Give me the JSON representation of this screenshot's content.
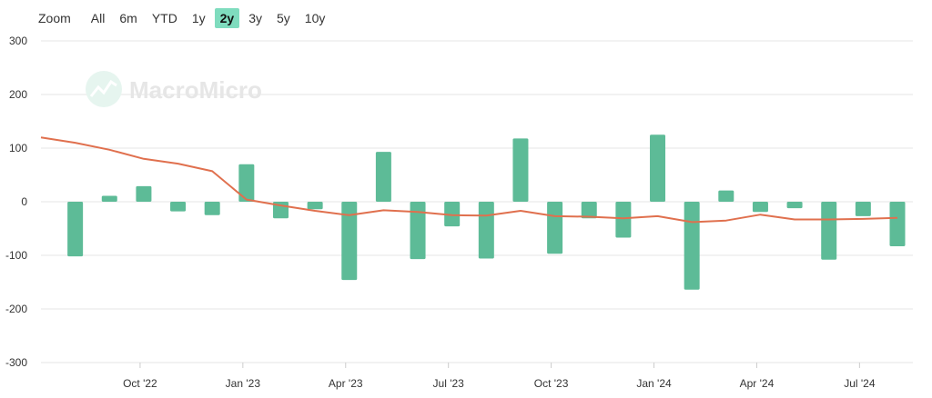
{
  "toolbar": {
    "zoom_label": "Zoom",
    "ranges": [
      "All",
      "6m",
      "YTD",
      "1y",
      "2y",
      "3y",
      "5y",
      "10y"
    ],
    "active_range": "2y"
  },
  "watermark": {
    "text": "MacroMicro"
  },
  "colors": {
    "bar": "#5dbb97",
    "line": "#e0704e",
    "grid": "#e6e6e6",
    "active": "#7fdcbe"
  },
  "chart_data": {
    "type": "bar",
    "title": "",
    "xlabel": "",
    "ylabel": "",
    "ylim": [
      -300,
      300
    ],
    "yticks": [
      300,
      200,
      100,
      0,
      -100,
      -200,
      -300
    ],
    "grid": true,
    "x": [
      "2022-08",
      "2022-09",
      "2022-10",
      "2022-11",
      "2022-12",
      "2023-01",
      "2023-02",
      "2023-03",
      "2023-04",
      "2023-05",
      "2023-06",
      "2023-07",
      "2023-08",
      "2023-09",
      "2023-10",
      "2023-11",
      "2023-12",
      "2024-01",
      "2024-02",
      "2024-03",
      "2024-04",
      "2024-05",
      "2024-06",
      "2024-07",
      "2024-08"
    ],
    "x_tick_labels": [
      {
        "label": "Oct '22",
        "at": "2022-10"
      },
      {
        "label": "Jan '23",
        "at": "2023-01"
      },
      {
        "label": "Apr '23",
        "at": "2023-04"
      },
      {
        "label": "Jul '23",
        "at": "2023-07"
      },
      {
        "label": "Oct '23",
        "at": "2023-10"
      },
      {
        "label": "Jan '24",
        "at": "2024-01"
      },
      {
        "label": "Apr '24",
        "at": "2024-04"
      },
      {
        "label": "Jul '24",
        "at": "2024-07"
      }
    ],
    "series": [
      {
        "type": "bar",
        "values": [
          -102,
          11,
          29,
          -18,
          -25,
          70,
          -31,
          -14,
          -146,
          93,
          -107,
          -46,
          -106,
          118,
          -97,
          -31,
          -67,
          125,
          -164,
          21,
          -19,
          -12,
          -108,
          -27,
          -83
        ]
      },
      {
        "type": "line",
        "x": [
          "2022-07",
          "2022-08",
          "2022-09",
          "2022-10",
          "2022-11",
          "2022-12",
          "2023-01",
          "2023-02",
          "2023-03",
          "2023-04",
          "2023-05",
          "2023-06",
          "2023-07",
          "2023-08",
          "2023-09",
          "2023-10",
          "2023-11",
          "2023-12",
          "2024-01",
          "2024-02",
          "2024-03",
          "2024-04",
          "2024-05",
          "2024-06",
          "2024-07",
          "2024-08"
        ],
        "values": [
          120,
          110,
          97,
          80,
          71,
          57,
          4,
          -7,
          -17,
          -25,
          -16,
          -19,
          -25,
          -26,
          -17,
          -27,
          -28,
          -31,
          -27,
          -38,
          -35,
          -24,
          -33,
          -33,
          -32,
          -30
        ]
      }
    ]
  }
}
